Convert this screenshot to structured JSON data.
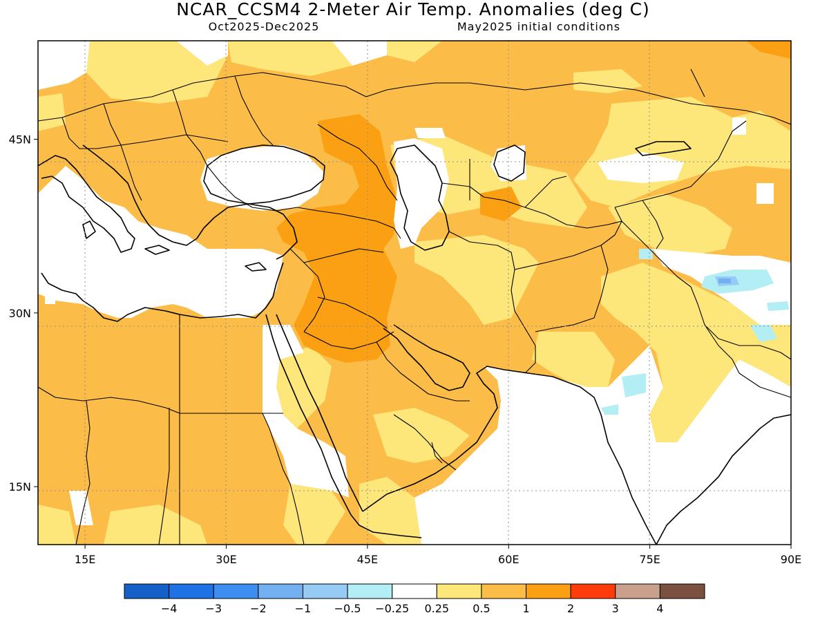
{
  "title": "NCAR_CCSM4 2-Meter Air Temp. Anomalies (deg C)",
  "subtitle_left": "Oct2025-Dec2025",
  "subtitle_right": "May2025 initial conditions",
  "map": {
    "lon_range": [
      10,
      90
    ],
    "lat_range": [
      10,
      53.5
    ],
    "lat_ticks": [
      {
        "value": 45,
        "label": "45N"
      },
      {
        "value": 30,
        "label": "30N"
      },
      {
        "value": 15,
        "label": "15N"
      }
    ],
    "lon_ticks": [
      {
        "value": 15,
        "label": "15E"
      },
      {
        "value": 30,
        "label": "30E"
      },
      {
        "value": 45,
        "label": "45E"
      },
      {
        "value": 60,
        "label": "60E"
      },
      {
        "value": 75,
        "label": "75E"
      },
      {
        "value": 90,
        "label": "90E"
      }
    ]
  },
  "colorbar": {
    "colors": [
      "#1560c8",
      "#1f72e6",
      "#3d8ef0",
      "#72b0f2",
      "#96cbf5",
      "#b2eef3",
      "#ffffff",
      "#fde67a",
      "#fbbc48",
      "#fb9f13",
      "#ff3b0c",
      "#c8a08c",
      "#7a5040"
    ],
    "labels": [
      "−4",
      "−3",
      "−2",
      "−1",
      "−0.5",
      "−0.25",
      "0.25",
      "0.5",
      "1",
      "2",
      "3",
      "4"
    ]
  },
  "legend_colors": {
    "white": "#ffffff",
    "light_orange": "#fde67a",
    "orange": "#fbbc48",
    "dark_orange": "#fb9f13",
    "light_blue": "#b2eef3",
    "blue": "#96cbf5",
    "mid_blue": "#72b0f2"
  }
}
